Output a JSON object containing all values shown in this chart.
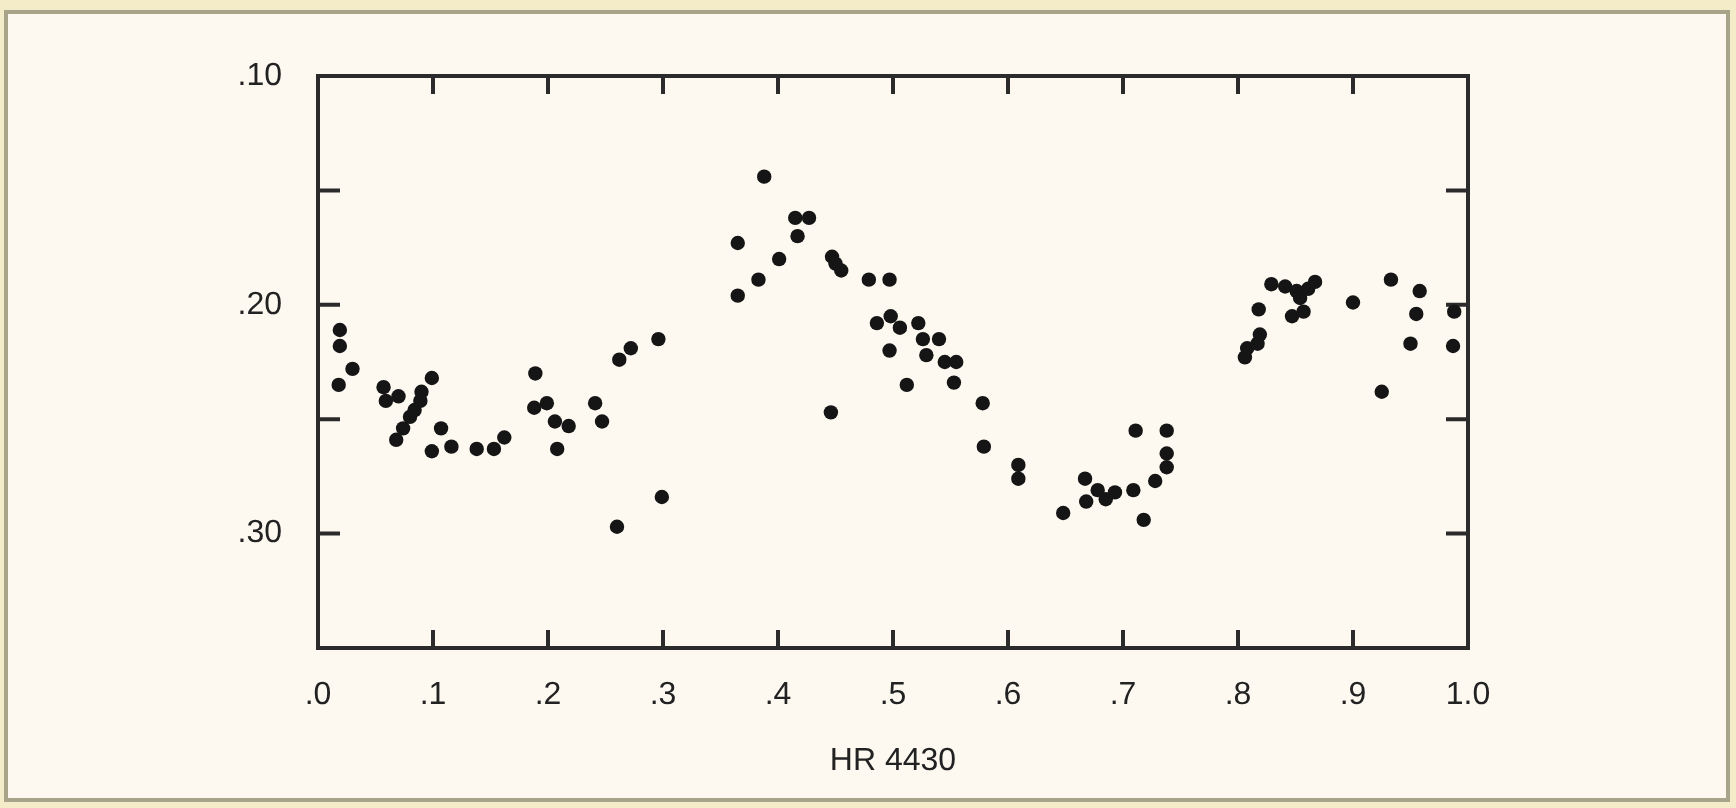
{
  "chart_data": {
    "type": "scatter",
    "xlabel": "HR 4430",
    "color": "#151515",
    "marker": "circle",
    "xlim": [
      0,
      1
    ],
    "ylim": [
      0.35,
      0.1
    ],
    "xticks": [
      {
        "value": 0,
        "label": ".0"
      },
      {
        "value": 0.1,
        "label": ".1"
      },
      {
        "value": 0.2,
        "label": ".2"
      },
      {
        "value": 0.3,
        "label": ".3"
      },
      {
        "value": 0.4,
        "label": ".4"
      },
      {
        "value": 0.5,
        "label": ".5"
      },
      {
        "value": 0.6,
        "label": ".6"
      },
      {
        "value": 0.7,
        "label": ".7"
      },
      {
        "value": 0.8,
        "label": ".8"
      },
      {
        "value": 0.9,
        "label": ".9"
      },
      {
        "value": 1,
        "label": "1.0"
      }
    ],
    "yticks": [
      {
        "value": 0.1,
        "label": ".10"
      },
      {
        "value": 0.15,
        "label": null
      },
      {
        "value": 0.2,
        "label": ".20"
      },
      {
        "value": 0.25,
        "label": null
      },
      {
        "value": 0.3,
        "label": ".30"
      }
    ],
    "x": [
      0.019,
      0.019,
      0.018,
      0.03,
      0.057,
      0.059,
      0.07,
      0.09,
      0.099,
      0.068,
      0.074,
      0.08,
      0.084,
      0.089,
      0.099,
      0.107,
      0.116,
      0.138,
      0.153,
      0.162,
      0.189,
      0.188,
      0.199,
      0.206,
      0.218,
      0.208,
      0.241,
      0.247,
      0.262,
      0.272,
      0.296,
      0.26,
      0.299,
      0.365,
      0.365,
      0.383,
      0.388,
      0.401,
      0.417,
      0.415,
      0.427,
      0.447,
      0.45,
      0.455,
      0.446,
      0.479,
      0.497,
      0.486,
      0.498,
      0.506,
      0.497,
      0.522,
      0.526,
      0.54,
      0.529,
      0.545,
      0.555,
      0.512,
      0.553,
      0.578,
      0.579,
      0.609,
      0.609,
      0.648,
      0.667,
      0.668,
      0.678,
      0.685,
      0.693,
      0.709,
      0.711,
      0.718,
      0.728,
      0.738,
      0.738,
      0.738,
      0.806,
      0.808,
      0.817,
      0.819,
      0.818,
      0.829,
      0.841,
      0.851,
      0.854,
      0.847,
      0.857,
      0.867,
      0.861,
      0.9,
      0.933,
      0.958,
      0.955,
      0.95,
      0.988,
      0.987,
      0.925
    ],
    "values": [
      0.211,
      0.218,
      0.235,
      0.228,
      0.236,
      0.242,
      0.24,
      0.238,
      0.232,
      0.259,
      0.254,
      0.249,
      0.246,
      0.242,
      0.264,
      0.254,
      0.262,
      0.263,
      0.263,
      0.258,
      0.23,
      0.245,
      0.243,
      0.251,
      0.253,
      0.263,
      0.243,
      0.251,
      0.224,
      0.219,
      0.215,
      0.297,
      0.284,
      0.173,
      0.196,
      0.189,
      0.144,
      0.18,
      0.17,
      0.162,
      0.162,
      0.179,
      0.182,
      0.185,
      0.247,
      0.189,
      0.189,
      0.208,
      0.205,
      0.21,
      0.22,
      0.208,
      0.215,
      0.215,
      0.222,
      0.225,
      0.225,
      0.235,
      0.234,
      0.243,
      0.262,
      0.27,
      0.276,
      0.291,
      0.276,
      0.286,
      0.281,
      0.285,
      0.282,
      0.281,
      0.255,
      0.294,
      0.277,
      0.255,
      0.265,
      0.271,
      0.223,
      0.219,
      0.217,
      0.213,
      0.202,
      0.191,
      0.192,
      0.194,
      0.197,
      0.205,
      0.203,
      0.19,
      0.193,
      0.199,
      0.189,
      0.194,
      0.204,
      0.217,
      0.203,
      0.218,
      0.238
    ]
  }
}
